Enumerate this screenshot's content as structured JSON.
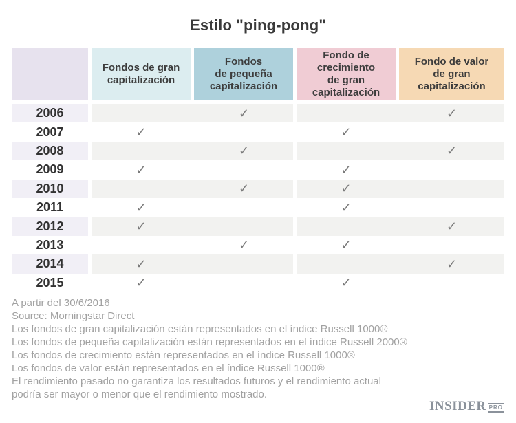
{
  "title": "Estilo \"ping-pong\"",
  "colors": {
    "title_text": "#3a3a3a",
    "header_text": "#3d3d3d",
    "year_text": "#333333",
    "check": "#7b7b7b",
    "stripe_gray": "#f2f2f0",
    "stripe_year": "#f1eff6",
    "year_header_bg": "#e7e2ee",
    "footer_text": "#a1a1a1",
    "logo": "#8b929b"
  },
  "table": {
    "check_glyph": "✓",
    "columns": [
      {
        "label": "Fondos de gran\ncapitalización",
        "color": "#dcedf0"
      },
      {
        "label": "Fondos\nde pequeña\ncapitalización",
        "color": "#aed1dc"
      },
      {
        "label": "Fondo de\ncrecimiento\nde gran\ncapitalización",
        "color": "#f0ccd4"
      },
      {
        "label": "Fondo de valor\nde gran\ncapitalización",
        "color": "#f6d9b4"
      }
    ]
  },
  "chart_data": {
    "type": "table",
    "title": "Estilo \"ping-pong\"",
    "columns": [
      "Fondos de gran capitalización",
      "Fondos de pequeña capitalización",
      "Fondo de crecimiento de gran capitalización",
      "Fondo de valor de gran capitalización"
    ],
    "rows": [
      {
        "year": "2006",
        "checks": [
          false,
          true,
          false,
          true
        ]
      },
      {
        "year": "2007",
        "checks": [
          true,
          false,
          true,
          false
        ]
      },
      {
        "year": "2008",
        "checks": [
          false,
          true,
          false,
          true
        ]
      },
      {
        "year": "2009",
        "checks": [
          true,
          false,
          true,
          false
        ]
      },
      {
        "year": "2010",
        "checks": [
          false,
          true,
          true,
          false
        ]
      },
      {
        "year": "2011",
        "checks": [
          true,
          false,
          true,
          false
        ]
      },
      {
        "year": "2012",
        "checks": [
          true,
          false,
          false,
          true
        ]
      },
      {
        "year": "2013",
        "checks": [
          false,
          true,
          true,
          false
        ]
      },
      {
        "year": "2014",
        "checks": [
          true,
          false,
          false,
          true
        ]
      },
      {
        "year": "2015",
        "checks": [
          true,
          false,
          true,
          false
        ]
      }
    ]
  },
  "footer": {
    "lines": [
      "A partir del 30/6/2016",
      "Source: Morningstar Direct",
      "Los fondos de gran capitalización están representados en el índice Russell 1000®",
      "Los fondos de pequeña capitalización están representados en el índice Russell 2000®",
      "Los fondos de crecimiento están representados en el índice Russell 1000®",
      "Los fondos de valor están representados en el índice Russell 1000®",
      "El rendimiento pasado no garantiza los resultados futuros y el rendimiento actual",
      "podría ser mayor o menor que el rendimiento mostrado."
    ]
  },
  "logo": {
    "name": "INSIDER",
    "suffix": "PRO"
  }
}
